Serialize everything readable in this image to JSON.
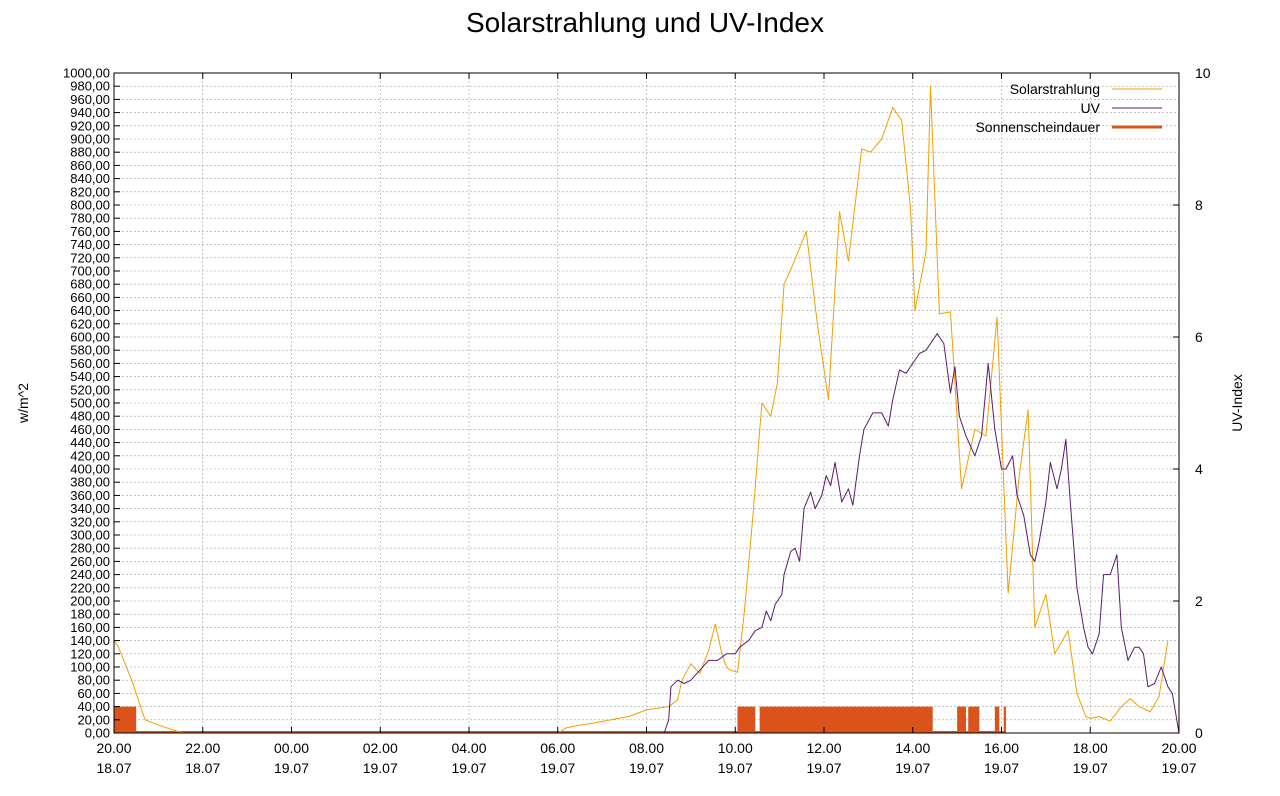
{
  "chart_data": {
    "type": "line",
    "title": "Solarstrahlung und UV-Index",
    "ylabel": "w/m^2",
    "y2label": "UV-Index",
    "ylim": [
      0,
      1000
    ],
    "y2lim": [
      0,
      10
    ],
    "xlim": [
      0,
      24
    ],
    "grid": true,
    "legend_position": "top-right",
    "x_ticks": [
      {
        "x": 0,
        "time": "20.00",
        "date": "18.07"
      },
      {
        "x": 2,
        "time": "22.00",
        "date": "18.07"
      },
      {
        "x": 4,
        "time": "00.00",
        "date": "19.07"
      },
      {
        "x": 6,
        "time": "02.00",
        "date": "19.07"
      },
      {
        "x": 8,
        "time": "04.00",
        "date": "19.07"
      },
      {
        "x": 10,
        "time": "06.00",
        "date": "19.07"
      },
      {
        "x": 12,
        "time": "08.00",
        "date": "19.07"
      },
      {
        "x": 14,
        "time": "10.00",
        "date": "19.07"
      },
      {
        "x": 16,
        "time": "12.00",
        "date": "19.07"
      },
      {
        "x": 18,
        "time": "14.00",
        "date": "19.07"
      },
      {
        "x": 20,
        "time": "16.00",
        "date": "19.07"
      },
      {
        "x": 22,
        "time": "18.00",
        "date": "19.07"
      },
      {
        "x": 24,
        "time": "20.00",
        "date": "19.07"
      }
    ],
    "y_ticks": [
      "0,00",
      "20,00",
      "40,00",
      "60,00",
      "80,00",
      "100,00",
      "120,00",
      "140,00",
      "160,00",
      "180,00",
      "200,00",
      "220,00",
      "240,00",
      "260,00",
      "280,00",
      "300,00",
      "320,00",
      "340,00",
      "360,00",
      "380,00",
      "400,00",
      "420,00",
      "440,00",
      "460,00",
      "480,00",
      "500,00",
      "520,00",
      "540,00",
      "560,00",
      "580,00",
      "600,00",
      "620,00",
      "640,00",
      "660,00",
      "680,00",
      "700,00",
      "720,00",
      "740,00",
      "760,00",
      "780,00",
      "800,00",
      "820,00",
      "840,00",
      "860,00",
      "880,00",
      "900,00",
      "920,00",
      "940,00",
      "960,00",
      "980,00",
      "1000,00"
    ],
    "y2_ticks": [
      "0",
      "2",
      "4",
      "6",
      "8",
      "10"
    ],
    "series": [
      {
        "name": "Solarstrahlung",
        "color": "#f0a000",
        "axis": "y",
        "points": [
          [
            0,
            140
          ],
          [
            0.1,
            130
          ],
          [
            0.4,
            80
          ],
          [
            0.7,
            20
          ],
          [
            1.0,
            12
          ],
          [
            1.4,
            3
          ],
          [
            1.6,
            0
          ],
          [
            10.0,
            0
          ],
          [
            10.2,
            8
          ],
          [
            10.5,
            12
          ],
          [
            10.8,
            15
          ],
          [
            11.2,
            20
          ],
          [
            11.6,
            25
          ],
          [
            12.0,
            35
          ],
          [
            12.3,
            38
          ],
          [
            12.5,
            40
          ],
          [
            12.7,
            50
          ],
          [
            12.8,
            80
          ],
          [
            13.0,
            105
          ],
          [
            13.2,
            90
          ],
          [
            13.4,
            125
          ],
          [
            13.55,
            165
          ],
          [
            13.7,
            120
          ],
          [
            13.8,
            100
          ],
          [
            13.9,
            95
          ],
          [
            14.05,
            92
          ],
          [
            14.2,
            180
          ],
          [
            14.4,
            330
          ],
          [
            14.6,
            500
          ],
          [
            14.8,
            480
          ],
          [
            14.95,
            530
          ],
          [
            15.1,
            680
          ],
          [
            15.3,
            710
          ],
          [
            15.6,
            760
          ],
          [
            15.85,
            620
          ],
          [
            16.1,
            505
          ],
          [
            16.35,
            790
          ],
          [
            16.55,
            715
          ],
          [
            16.85,
            885
          ],
          [
            17.05,
            880
          ],
          [
            17.3,
            900
          ],
          [
            17.55,
            948
          ],
          [
            17.75,
            928
          ],
          [
            17.95,
            795
          ],
          [
            18.05,
            640
          ],
          [
            18.3,
            730
          ],
          [
            18.4,
            980
          ],
          [
            18.6,
            635
          ],
          [
            18.85,
            638
          ],
          [
            19.1,
            370
          ],
          [
            19.4,
            460
          ],
          [
            19.65,
            450
          ],
          [
            19.9,
            630
          ],
          [
            20.15,
            212
          ],
          [
            20.4,
            390
          ],
          [
            20.6,
            490
          ],
          [
            20.75,
            160
          ],
          [
            21.0,
            210
          ],
          [
            21.2,
            120
          ],
          [
            21.5,
            155
          ],
          [
            21.7,
            60
          ],
          [
            21.9,
            25
          ],
          [
            22.0,
            22
          ],
          [
            22.2,
            25
          ],
          [
            22.45,
            18
          ],
          [
            22.7,
            40
          ],
          [
            22.9,
            52
          ],
          [
            23.1,
            40
          ],
          [
            23.35,
            32
          ],
          [
            23.55,
            55
          ],
          [
            23.75,
            140
          ]
        ]
      },
      {
        "name": "UV",
        "color": "#5a1a6e",
        "axis": "y2",
        "points": [
          [
            12.4,
            0
          ],
          [
            12.5,
            0.2
          ],
          [
            12.55,
            0.7
          ],
          [
            12.7,
            0.8
          ],
          [
            12.85,
            0.75
          ],
          [
            13.0,
            0.8
          ],
          [
            13.2,
            0.95
          ],
          [
            13.4,
            1.1
          ],
          [
            13.6,
            1.1
          ],
          [
            13.8,
            1.2
          ],
          [
            14.0,
            1.2
          ],
          [
            14.1,
            1.3
          ],
          [
            14.3,
            1.4
          ],
          [
            14.45,
            1.55
          ],
          [
            14.6,
            1.6
          ],
          [
            14.7,
            1.85
          ],
          [
            14.8,
            1.7
          ],
          [
            14.9,
            1.95
          ],
          [
            15.05,
            2.1
          ],
          [
            15.1,
            2.4
          ],
          [
            15.25,
            2.75
          ],
          [
            15.35,
            2.8
          ],
          [
            15.45,
            2.6
          ],
          [
            15.55,
            3.4
          ],
          [
            15.7,
            3.65
          ],
          [
            15.8,
            3.4
          ],
          [
            15.95,
            3.6
          ],
          [
            16.05,
            3.9
          ],
          [
            16.15,
            3.75
          ],
          [
            16.25,
            4.1
          ],
          [
            16.4,
            3.5
          ],
          [
            16.55,
            3.7
          ],
          [
            16.65,
            3.45
          ],
          [
            16.8,
            4.2
          ],
          [
            16.9,
            4.6
          ],
          [
            17.1,
            4.85
          ],
          [
            17.3,
            4.85
          ],
          [
            17.45,
            4.65
          ],
          [
            17.55,
            5.05
          ],
          [
            17.7,
            5.5
          ],
          [
            17.85,
            5.45
          ],
          [
            18.0,
            5.6
          ],
          [
            18.15,
            5.75
          ],
          [
            18.3,
            5.8
          ],
          [
            18.55,
            6.05
          ],
          [
            18.7,
            5.9
          ],
          [
            18.85,
            5.15
          ],
          [
            18.95,
            5.55
          ],
          [
            19.05,
            4.8
          ],
          [
            19.2,
            4.5
          ],
          [
            19.4,
            4.2
          ],
          [
            19.55,
            4.5
          ],
          [
            19.7,
            5.6
          ],
          [
            19.85,
            4.6
          ],
          [
            20.0,
            4.0
          ],
          [
            20.1,
            4.0
          ],
          [
            20.25,
            4.2
          ],
          [
            20.35,
            3.6
          ],
          [
            20.5,
            3.3
          ],
          [
            20.65,
            2.7
          ],
          [
            20.75,
            2.6
          ],
          [
            20.85,
            2.9
          ],
          [
            21.0,
            3.5
          ],
          [
            21.1,
            4.1
          ],
          [
            21.25,
            3.7
          ],
          [
            21.35,
            4.0
          ],
          [
            21.45,
            4.45
          ],
          [
            21.55,
            3.5
          ],
          [
            21.7,
            2.2
          ],
          [
            21.85,
            1.6
          ],
          [
            21.95,
            1.3
          ],
          [
            22.05,
            1.2
          ],
          [
            22.2,
            1.5
          ],
          [
            22.3,
            2.4
          ],
          [
            22.45,
            2.4
          ],
          [
            22.6,
            2.7
          ],
          [
            22.7,
            1.6
          ],
          [
            22.85,
            1.1
          ],
          [
            23.0,
            1.3
          ],
          [
            23.1,
            1.3
          ],
          [
            23.2,
            1.2
          ],
          [
            23.3,
            0.7
          ],
          [
            23.45,
            0.75
          ],
          [
            23.6,
            1.0
          ],
          [
            23.75,
            0.7
          ],
          [
            23.85,
            0.6
          ],
          [
            23.95,
            0.2
          ],
          [
            24.0,
            0
          ]
        ]
      }
    ],
    "bar_series": {
      "name": "Sonnenscheindauer",
      "color": "#d9531a",
      "axis": "y",
      "height": 40,
      "intervals": [
        [
          0.0,
          0.5
        ],
        [
          14.05,
          14.45
        ],
        [
          14.55,
          18.45
        ],
        [
          19.0,
          19.2
        ],
        [
          19.25,
          19.5
        ],
        [
          19.85,
          19.95
        ],
        [
          20.05,
          20.1
        ]
      ]
    }
  }
}
